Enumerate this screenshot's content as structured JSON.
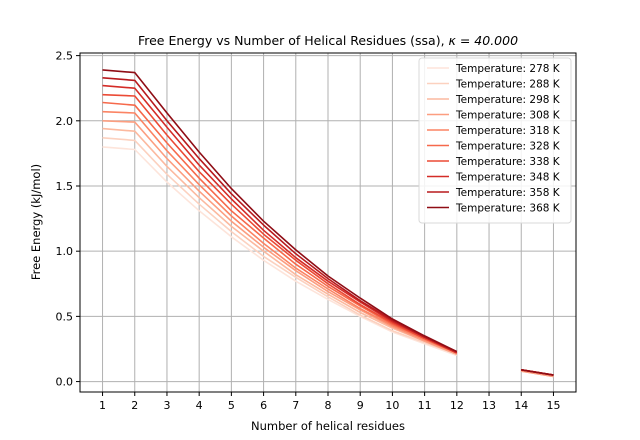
{
  "chart_data": {
    "type": "line",
    "title": "Free Energy vs Number of Helical Residues (ssa), ",
    "title_kappa": "κ = 40.000",
    "xlabel": "Number of helical residues",
    "ylabel": "Free Energy (kJ/mol)",
    "xlim": [
      0.3,
      15.7
    ],
    "ylim": [
      -0.08,
      2.52
    ],
    "xticks": [
      1,
      2,
      3,
      4,
      5,
      6,
      7,
      8,
      9,
      10,
      11,
      12,
      13,
      14,
      15
    ],
    "xtick_labels": [
      "1",
      "2",
      "3",
      "4",
      "5",
      "6",
      "7",
      "8",
      "9",
      "10",
      "11",
      "12",
      "13",
      "14",
      "15"
    ],
    "yticks": [
      0.0,
      0.5,
      1.0,
      1.5,
      2.0,
      2.5
    ],
    "ytick_labels": [
      "0.0",
      "0.5",
      "1.0",
      "1.5",
      "2.0",
      "2.5"
    ],
    "grid": true,
    "legend_position": "top-right",
    "x": [
      1,
      2,
      3,
      4,
      5,
      6,
      7,
      8,
      9,
      10,
      11,
      12,
      13,
      14,
      15
    ],
    "series": [
      {
        "name": "Temperature: 278 K",
        "color": "#fde4da",
        "values": [
          1.8,
          1.78,
          1.53,
          1.31,
          1.11,
          0.93,
          0.77,
          0.63,
          0.5,
          0.38,
          0.29,
          0.2,
          null,
          0.08,
          0.04
        ]
      },
      {
        "name": "Temperature: 288 K",
        "color": "#fcd1bf",
        "values": [
          1.87,
          1.85,
          1.59,
          1.36,
          1.15,
          0.96,
          0.8,
          0.65,
          0.51,
          0.39,
          0.3,
          0.21,
          null,
          0.08,
          0.04
        ]
      },
      {
        "name": "Temperature: 298 K",
        "color": "#fcb99f",
        "values": [
          1.94,
          1.92,
          1.65,
          1.41,
          1.19,
          1.0,
          0.82,
          0.67,
          0.53,
          0.41,
          0.31,
          0.21,
          null,
          0.08,
          0.04
        ]
      },
      {
        "name": "Temperature: 308 K",
        "color": "#fc9e80",
        "values": [
          2.0,
          1.99,
          1.71,
          1.46,
          1.23,
          1.03,
          0.85,
          0.69,
          0.55,
          0.42,
          0.31,
          0.21,
          null,
          0.08,
          0.04
        ]
      },
      {
        "name": "Temperature: 318 K",
        "color": "#fb8464",
        "values": [
          2.07,
          2.06,
          1.77,
          1.51,
          1.27,
          1.06,
          0.87,
          0.71,
          0.56,
          0.43,
          0.32,
          0.22,
          null,
          0.09,
          0.05
        ]
      },
      {
        "name": "Temperature: 328 K",
        "color": "#f6694b",
        "values": [
          2.14,
          2.12,
          1.83,
          1.56,
          1.31,
          1.1,
          0.9,
          0.73,
          0.58,
          0.44,
          0.33,
          0.22,
          null,
          0.09,
          0.05
        ]
      },
      {
        "name": "Temperature: 338 K",
        "color": "#eb4a35",
        "values": [
          2.2,
          2.19,
          1.89,
          1.61,
          1.36,
          1.13,
          0.93,
          0.75,
          0.59,
          0.45,
          0.33,
          0.22,
          null,
          0.09,
          0.05
        ]
      },
      {
        "name": "Temperature: 348 K",
        "color": "#d42c27",
        "values": [
          2.27,
          2.25,
          1.95,
          1.66,
          1.4,
          1.16,
          0.95,
          0.77,
          0.61,
          0.46,
          0.34,
          0.22,
          null,
          0.09,
          0.05
        ]
      },
      {
        "name": "Temperature: 358 K",
        "color": "#b81a1d",
        "values": [
          2.33,
          2.31,
          2.0,
          1.71,
          1.44,
          1.2,
          0.98,
          0.79,
          0.62,
          0.47,
          0.34,
          0.23,
          null,
          0.09,
          0.05
        ]
      },
      {
        "name": "Temperature: 368 K",
        "color": "#8f0d15",
        "values": [
          2.39,
          2.37,
          2.06,
          1.76,
          1.48,
          1.23,
          1.01,
          0.81,
          0.64,
          0.48,
          0.35,
          0.23,
          null,
          0.09,
          0.05
        ]
      }
    ]
  }
}
